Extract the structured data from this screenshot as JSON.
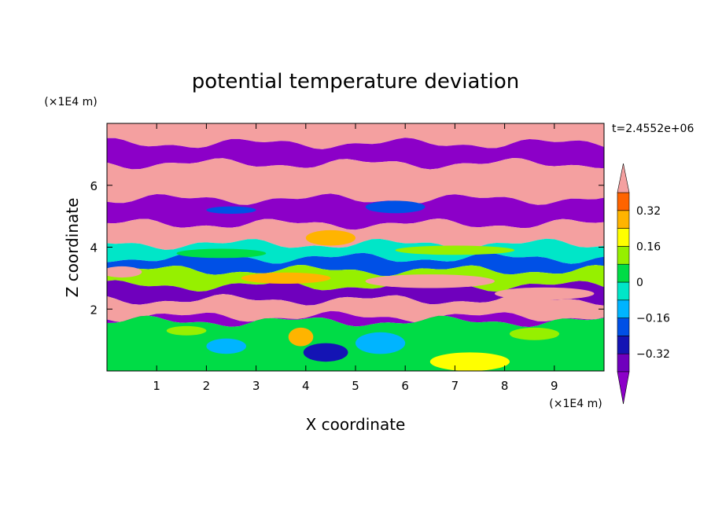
{
  "chart_data": {
    "type": "heatmap",
    "title": "potential temperature deviation",
    "xlabel": "X coordinate",
    "ylabel": "Z coordinate",
    "x_unit": "(×1E4 m)",
    "y_unit": "(×1E4 m)",
    "time_label": "t=2.4552e+06",
    "xlim": [
      0,
      10
    ],
    "ylim": [
      0,
      8
    ],
    "x_ticks": [
      1,
      2,
      3,
      4,
      5,
      6,
      7,
      8,
      9
    ],
    "y_ticks": [
      2,
      4,
      6
    ],
    "colorbar": {
      "levels": [
        -0.4,
        -0.32,
        -0.24,
        -0.16,
        -0.08,
        0,
        0.08,
        0.16,
        0.24,
        0.32,
        0.4
      ],
      "labels": [
        "0.32",
        "0.16",
        "0",
        "−0.16",
        "−0.32"
      ],
      "label_values": [
        0.32,
        0.16,
        0,
        -0.16,
        -0.32
      ],
      "colors": [
        "#8c00c8",
        "#6f00bd",
        "#1414b4",
        "#0050e6",
        "#00b4ff",
        "#00e6c8",
        "#00dc46",
        "#96f000",
        "#ffff00",
        "#ffb400",
        "#ff6400",
        "#f01e1e",
        "#f4a0a0"
      ],
      "extend": "both"
    },
    "bands": [
      {
        "z_top": 8.0,
        "z_bot": 7.35,
        "value": 0.45
      },
      {
        "z_top": 7.35,
        "z_bot": 6.7,
        "value": -0.45
      },
      {
        "z_top": 6.7,
        "z_bot": 5.55,
        "value": 0.45
      },
      {
        "z_top": 5.55,
        "z_bot": 4.75,
        "value": -0.45
      },
      {
        "z_top": 4.75,
        "z_bot": 4.1,
        "value": 0.45
      },
      {
        "z_top": 4.1,
        "z_bot": 3.65,
        "value": -0.05
      },
      {
        "z_top": 3.65,
        "z_bot": 3.25,
        "value": -0.2
      },
      {
        "z_top": 3.25,
        "z_bot": 2.75,
        "value": 0.1
      },
      {
        "z_top": 2.75,
        "z_bot": 2.3,
        "value": -0.35
      },
      {
        "z_top": 2.3,
        "z_bot": 1.75,
        "value": 0.45
      },
      {
        "z_top": 1.75,
        "z_bot": 1.6,
        "value": -0.45
      },
      {
        "z_top": 1.6,
        "z_bot": 0.0,
        "value": 0.0
      }
    ],
    "blobs": [
      {
        "x": 4.5,
        "z": 4.3,
        "rx": 0.5,
        "rz": 0.25,
        "value": 0.3
      },
      {
        "x": 2.3,
        "z": 3.8,
        "rx": 0.9,
        "rz": 0.15,
        "value": 0.05
      },
      {
        "x": 7.0,
        "z": 3.9,
        "rx": 1.2,
        "rz": 0.15,
        "value": 0.1
      },
      {
        "x": 6.5,
        "z": 2.9,
        "rx": 1.3,
        "rz": 0.22,
        "value": 0.45
      },
      {
        "x": 8.8,
        "z": 2.5,
        "rx": 1.0,
        "rz": 0.2,
        "value": 0.45
      },
      {
        "x": 4.4,
        "z": 0.6,
        "rx": 0.45,
        "rz": 0.3,
        "value": -0.3
      },
      {
        "x": 2.4,
        "z": 0.8,
        "rx": 0.4,
        "rz": 0.25,
        "value": -0.1
      },
      {
        "x": 7.3,
        "z": 0.3,
        "rx": 0.8,
        "rz": 0.3,
        "value": 0.2
      },
      {
        "x": 5.5,
        "z": 0.9,
        "rx": 0.5,
        "rz": 0.35,
        "value": -0.15
      },
      {
        "x": 8.6,
        "z": 1.2,
        "rx": 0.5,
        "rz": 0.2,
        "value": 0.15
      },
      {
        "x": 3.9,
        "z": 1.1,
        "rx": 0.25,
        "rz": 0.3,
        "value": 0.25
      },
      {
        "x": 1.6,
        "z": 1.3,
        "rx": 0.4,
        "rz": 0.15,
        "value": 0.15
      },
      {
        "x": 0.3,
        "z": 3.2,
        "rx": 0.4,
        "rz": 0.18,
        "value": 0.45
      },
      {
        "x": 3.6,
        "z": 3.0,
        "rx": 0.9,
        "rz": 0.18,
        "value": 0.3
      },
      {
        "x": 5.8,
        "z": 5.3,
        "rx": 0.6,
        "rz": 0.2,
        "value": -0.2
      },
      {
        "x": 2.5,
        "z": 5.2,
        "rx": 0.5,
        "rz": 0.12,
        "value": -0.2
      }
    ]
  }
}
